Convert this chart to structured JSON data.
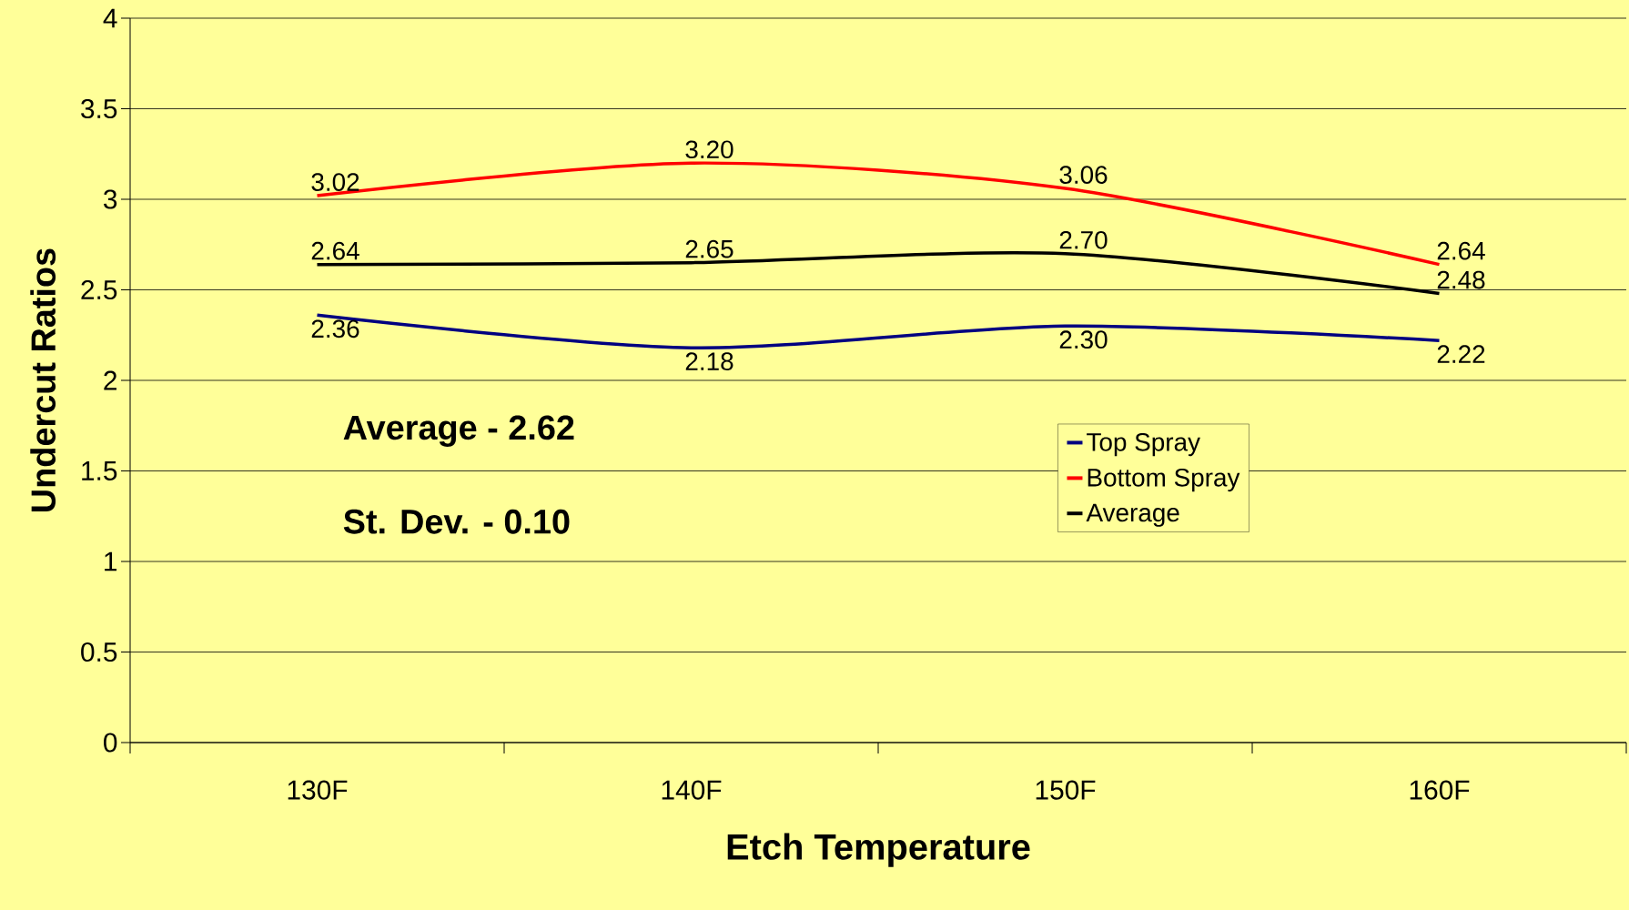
{
  "chart_data": {
    "type": "line",
    "xlabel": "Etch Temperature",
    "ylabel": "Undercut Ratios",
    "categories": [
      "130F",
      "140F",
      "150F",
      "160F"
    ],
    "series": [
      {
        "name": "Top Spray",
        "color": "#000080",
        "values": [
          2.36,
          2.18,
          2.3,
          2.22
        ],
        "value_labels": [
          "2.36",
          "2.18",
          "2.30",
          "2.22"
        ]
      },
      {
        "name": "Bottom Spray",
        "color": "#ff0000",
        "values": [
          3.02,
          3.2,
          3.06,
          2.64
        ],
        "value_labels": [
          "3.02",
          "3.20",
          "3.06",
          "2.64"
        ]
      },
      {
        "name": "Average",
        "color": "#000000",
        "values": [
          2.64,
          2.65,
          2.7,
          2.48
        ],
        "value_labels": [
          "2.64",
          "2.65",
          "2.70",
          "2.48"
        ]
      }
    ],
    "ylim": [
      0,
      4
    ],
    "yticks": [
      0,
      0.5,
      1,
      1.5,
      2,
      2.5,
      3,
      3.5,
      4
    ],
    "grid": "y",
    "legend": "right",
    "marker": "none",
    "line_style": "solid",
    "annotations": [
      "Average - 2.62",
      "St. Dev. - 0.10"
    ]
  }
}
